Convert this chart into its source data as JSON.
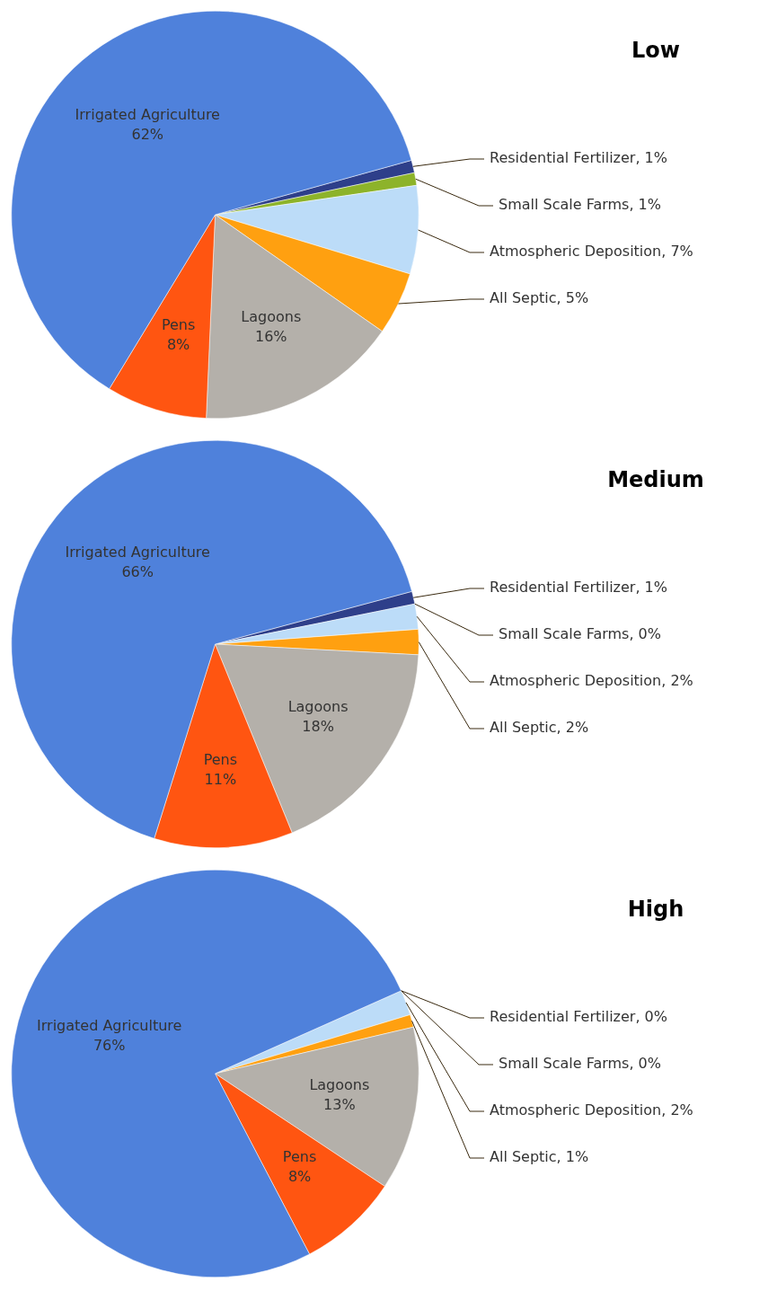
{
  "chart_data": [
    {
      "type": "pie",
      "title": "Low",
      "categories": [
        "Residential Fertilizer",
        "Small Scale Farms",
        "Atmospheric Deposition",
        "All Septic",
        "Lagoons",
        "Pens",
        "Irrigated Agriculture"
      ],
      "values": [
        1,
        1,
        7,
        5,
        16,
        8,
        62
      ],
      "value_labels": [
        ", 1%",
        ", 1%",
        ", 7%",
        ", 5%",
        "16%",
        "8%",
        "62%"
      ],
      "colors": [
        "#2e3f8a",
        "#8db32a",
        "#bcdcf8",
        "#ffa010",
        "#b4b0aa",
        "#ff5511",
        "#4f81db"
      ],
      "legend": false
    },
    {
      "type": "pie",
      "title": "Medium",
      "categories": [
        "Residential Fertilizer",
        "Small Scale Farms",
        "Atmospheric Deposition",
        "All Septic",
        "Lagoons",
        "Pens",
        "Irrigated Agriculture"
      ],
      "values": [
        1,
        0,
        2,
        2,
        18,
        11,
        66
      ],
      "value_labels": [
        ", 1%",
        ", 0%",
        ", 2%",
        ", 2%",
        "18%",
        "11%",
        "66%"
      ],
      "colors": [
        "#2e3f8a",
        "#8db32a",
        "#bcdcf8",
        "#ffa010",
        "#b4b0aa",
        "#ff5511",
        "#4f81db"
      ],
      "legend": false
    },
    {
      "type": "pie",
      "title": "High",
      "categories": [
        "Residential Fertilizer",
        "Small Scale Farms",
        "Atmospheric Deposition",
        "All Septic",
        "Lagoons",
        "Pens",
        "Irrigated Agriculture"
      ],
      "values": [
        0,
        0,
        2,
        1,
        13,
        8,
        76
      ],
      "value_labels": [
        ", 0%",
        ", 0%",
        ", 2%",
        ", 1%",
        "13%",
        "8%",
        "76%"
      ],
      "colors": [
        "#2e3f8a",
        "#8db32a",
        "#bcdcf8",
        "#ffa010",
        "#b4b0aa",
        "#ff5511",
        "#4f81db"
      ],
      "legend": false
    }
  ]
}
